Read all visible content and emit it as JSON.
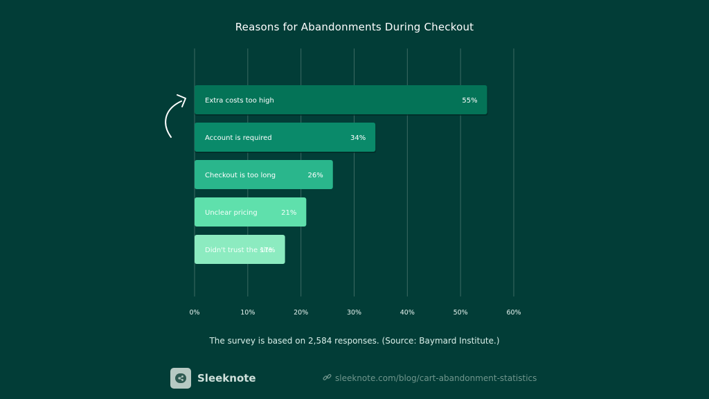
{
  "colors": {
    "background": "#023d37",
    "grid": "#3c6a63",
    "bar_dark": "#047357",
    "bar_mid": "#0a8a6a",
    "bar_teal": "#2ab68c",
    "bar_mint": "#5fe0ac",
    "bar_pale": "#8cebc0"
  },
  "chart_data": {
    "type": "bar",
    "orientation": "horizontal",
    "title": "Reasons for Abandonments During Checkout",
    "xlabel": "",
    "ylabel": "",
    "xlim": [
      0,
      60
    ],
    "xticks": [
      0,
      10,
      20,
      30,
      40,
      50,
      60
    ],
    "xtick_labels": [
      "0%",
      "10%",
      "20%",
      "30%",
      "40%",
      "50%",
      "60%"
    ],
    "grid": true,
    "categories": [
      "Extra costs too high",
      "Account is required",
      "Checkout is too long",
      "Unclear pricing",
      "Didn't trust the site"
    ],
    "values": [
      55,
      34,
      26,
      21,
      17
    ],
    "value_labels": [
      "55%",
      "34%",
      "26%",
      "21%",
      "17%"
    ],
    "bar_colors": [
      "#047357",
      "#0a8a6a",
      "#2ab68c",
      "#5fe0ac",
      "#8cebc0"
    ]
  },
  "footnote": "The survey is based on 2,584 responses. (Source: Baymard Institute.)",
  "brand": {
    "name": "Sleeknote",
    "logo_icon": "sleeknote-logo-icon"
  },
  "source": {
    "icon": "link-icon",
    "url_text": "sleeknote.com/blog/cart-abandonment-statistics"
  }
}
